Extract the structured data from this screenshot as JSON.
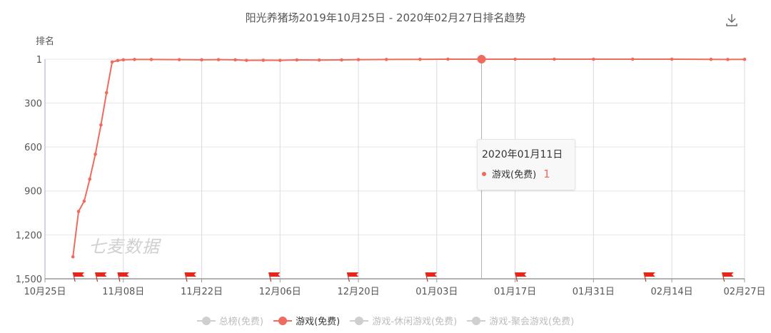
{
  "chart_data": {
    "type": "line",
    "title": "阳光养猪场2019年10月25日 - 2020年02月27日排名趋势",
    "ylabel": "排名",
    "xlabel": "",
    "x_axis_type": "date",
    "x_start": "2019-10-25",
    "x_end": "2020-02-27",
    "x_tick_labels": [
      "10月25日",
      "11月08日",
      "11月22日",
      "12月06日",
      "12月20日",
      "01月03日",
      "01月17日",
      "01月31日",
      "02月14日",
      "02月27日"
    ],
    "x_tick_dates": [
      "2019-10-25",
      "2019-11-08",
      "2019-11-22",
      "2019-12-06",
      "2019-12-20",
      "2020-01-03",
      "2020-01-17",
      "2020-01-31",
      "2020-02-14",
      "2020-02-27"
    ],
    "y_tick_labels": [
      "1",
      "300",
      "600",
      "900",
      "1,200",
      "1,500"
    ],
    "y_tick_values": [
      1,
      300,
      600,
      900,
      1200,
      1500
    ],
    "ylim": [
      1,
      1500
    ],
    "y_inverse": true,
    "grid": true,
    "legend_position": "bottom-center",
    "series": [
      {
        "name": "游戏(免费)",
        "color": "#ef6b5e",
        "points": [
          [
            "2019-10-30",
            1350
          ],
          [
            "2019-10-31",
            1040
          ],
          [
            "2019-11-01",
            970
          ],
          [
            "2019-11-02",
            820
          ],
          [
            "2019-11-03",
            650
          ],
          [
            "2019-11-04",
            450
          ],
          [
            "2019-11-05",
            230
          ],
          [
            "2019-11-06",
            20
          ],
          [
            "2019-11-07",
            10
          ],
          [
            "2019-11-08",
            5
          ],
          [
            "2019-11-10",
            3
          ],
          [
            "2019-11-13",
            3
          ],
          [
            "2019-11-18",
            4
          ],
          [
            "2019-11-22",
            5
          ],
          [
            "2019-11-25",
            4
          ],
          [
            "2019-11-28",
            5
          ],
          [
            "2019-11-30",
            9
          ],
          [
            "2019-12-03",
            8
          ],
          [
            "2019-12-06",
            9
          ],
          [
            "2019-12-09",
            6
          ],
          [
            "2019-12-13",
            7
          ],
          [
            "2019-12-17",
            6
          ],
          [
            "2019-12-20",
            4
          ],
          [
            "2019-12-25",
            3
          ],
          [
            "2019-12-31",
            2
          ],
          [
            "2020-01-05",
            1
          ],
          [
            "2020-01-11",
            1
          ],
          [
            "2020-01-17",
            1
          ],
          [
            "2020-01-24",
            1
          ],
          [
            "2020-01-31",
            1
          ],
          [
            "2020-02-07",
            1
          ],
          [
            "2020-02-14",
            1
          ],
          [
            "2020-02-21",
            2
          ],
          [
            "2020-02-24",
            3
          ],
          [
            "2020-02-27",
            2
          ]
        ]
      }
    ],
    "highlight": {
      "date": "2020-01-11",
      "value": 1
    },
    "event_flag_dates": [
      "2019-10-30",
      "2019-11-03",
      "2019-11-07",
      "2019-11-19",
      "2019-12-04",
      "2019-12-18",
      "2020-01-01",
      "2020-01-17",
      "2020-02-09",
      "2020-02-23"
    ]
  },
  "tooltip": {
    "title": "2020年01月11日",
    "series_name": "游戏(免费)",
    "value": "1"
  },
  "legend": [
    {
      "label": "总榜(免费)",
      "active": false
    },
    {
      "label": "游戏(免费)",
      "active": true
    },
    {
      "label": "游戏-休闲游戏(免费)",
      "active": false
    },
    {
      "label": "游戏-聚会游戏(免费)",
      "active": false
    }
  ],
  "watermark": "七麦数据",
  "icons": {
    "download": "download-icon",
    "event_flag": "flag-icon"
  },
  "colors": {
    "series": "#ef6b5e",
    "grid": "#e6e6e6",
    "axis": "#999999"
  }
}
